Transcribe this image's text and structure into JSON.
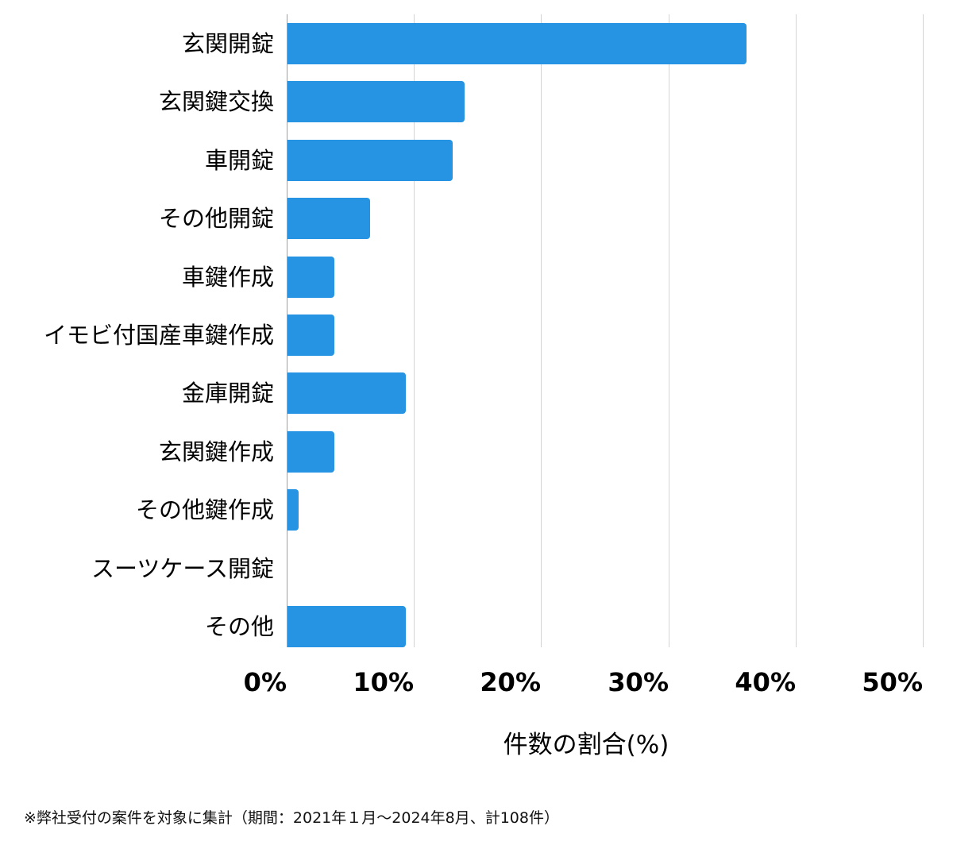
{
  "chart_data": {
    "type": "bar",
    "orientation": "horizontal",
    "title": "",
    "categories": [
      "玄関開錠",
      "玄関鍵交換",
      "車開錠",
      "その他開錠",
      "車鍵作成",
      "イモビ付国産車鍵作成",
      "金庫開錠",
      "玄関鍵作成",
      "その他鍵作成",
      "スーツケース開錠",
      "その他"
    ],
    "values": [
      36.1,
      13.9,
      13.0,
      6.5,
      3.7,
      3.7,
      9.3,
      3.7,
      0.9,
      0.0,
      9.3
    ],
    "xlabel": "件数の割合(%)",
    "ylabel": "",
    "xlim": [
      0,
      50
    ],
    "xticks": [
      "0%",
      "10%",
      "20%",
      "30%",
      "40%",
      "50%"
    ],
    "grid": true,
    "bar_color": "#2794e3",
    "footnote": "※弊社受付の案件を対象に集計（期間：2021年１月〜2024年8月、計108件）"
  },
  "axis": {
    "x_title": "件数の割合(%)",
    "ticks": [
      "0%",
      "10%",
      "20%",
      "30%",
      "40%",
      "50%"
    ]
  },
  "rows": [
    {
      "label": "玄関開錠",
      "value": 36.1
    },
    {
      "label": "玄関鍵交換",
      "value": 13.9
    },
    {
      "label": "車開錠",
      "value": 13.0
    },
    {
      "label": "その他開錠",
      "value": 6.5
    },
    {
      "label": "車鍵作成",
      "value": 3.7
    },
    {
      "label": "イモビ付国産車鍵作成",
      "value": 3.7
    },
    {
      "label": "金庫開錠",
      "value": 9.3
    },
    {
      "label": "玄関鍵作成",
      "value": 3.7
    },
    {
      "label": "その他鍵作成",
      "value": 0.9
    },
    {
      "label": "スーツケース開錠",
      "value": 0.0
    },
    {
      "label": "その他",
      "value": 9.3
    }
  ],
  "footnote": "※弊社受付の案件を対象に集計（期間：2021年１月〜2024年8月、計108件）",
  "colors": {
    "bar": "#2794e3",
    "grid": "#d4d4d4"
  }
}
